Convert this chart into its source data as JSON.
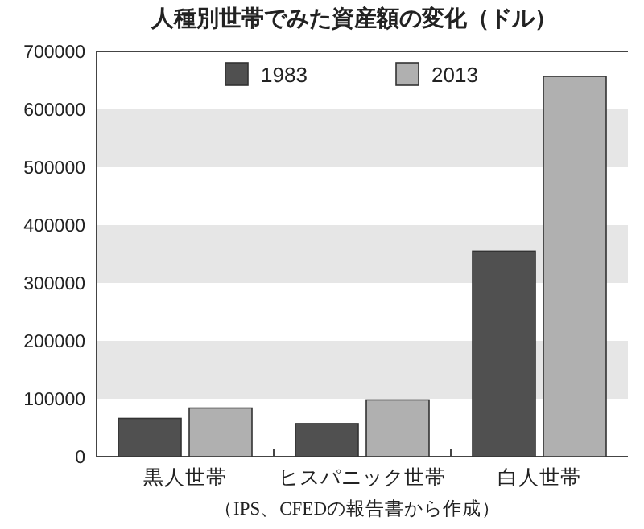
{
  "chart_data": {
    "type": "bar",
    "title": "人種別世帯でみた資産額の変化（ドル）",
    "categories": [
      "黒人世帯",
      "ヒスパニック世帯",
      "白人世帯"
    ],
    "series": [
      {
        "name": "1983",
        "color": "#505050",
        "values": [
          66000,
          57000,
          355000
        ]
      },
      {
        "name": "2013",
        "color": "#b0b0b0",
        "values": [
          84000,
          98000,
          657000
        ]
      }
    ],
    "ylim": [
      0,
      700000
    ],
    "yticks": [
      0,
      100000,
      200000,
      300000,
      400000,
      500000,
      600000,
      700000
    ],
    "bands": [
      {
        "axis": "y",
        "from": 100000,
        "to": 200000,
        "color": "#e6e6e6"
      },
      {
        "axis": "y",
        "from": 300000,
        "to": 400000,
        "color": "#e6e6e6"
      },
      {
        "axis": "y",
        "from": 500000,
        "to": 600000,
        "color": "#e6e6e6"
      }
    ],
    "legend": "top",
    "annotations": [
      "（IPS、CFEDの報告書から作成）"
    ]
  }
}
